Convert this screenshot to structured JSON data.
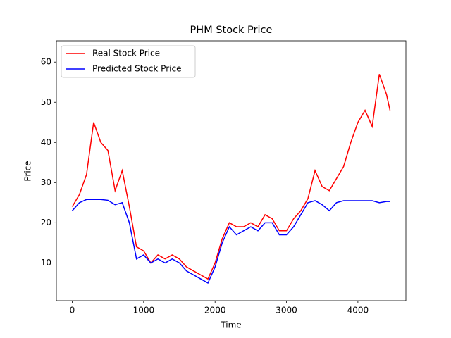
{
  "chart_data": {
    "type": "line",
    "title": "PHM Stock Price",
    "x_label": "Time",
    "y_label": "Price",
    "x": [
      0,
      100,
      200,
      300,
      400,
      500,
      600,
      700,
      800,
      900,
      1000,
      1100,
      1200,
      1300,
      1400,
      1500,
      1600,
      1700,
      1800,
      1900,
      2000,
      2100,
      2200,
      2300,
      2400,
      2500,
      2600,
      2700,
      2800,
      2900,
      3000,
      3100,
      3200,
      3300,
      3400,
      3500,
      3600,
      3700,
      3800,
      3900,
      4000,
      4100,
      4200,
      4300,
      4400,
      4450
    ],
    "series": [
      {
        "name": "Real Stock Price",
        "color": "#ff0000",
        "values": [
          24,
          27,
          32,
          45,
          40,
          38,
          28,
          33,
          24,
          14,
          13,
          10,
          12,
          11,
          12,
          11,
          9,
          8,
          7,
          6,
          10,
          16,
          20,
          19,
          19,
          20,
          19,
          22,
          21,
          18,
          18,
          21,
          23,
          26,
          33,
          29,
          28,
          31,
          34,
          40,
          45,
          48,
          44,
          57,
          52,
          48
        ]
      },
      {
        "name": "Predicted Stock Price",
        "color": "#0000ff",
        "values": [
          23,
          25,
          25.8,
          25.8,
          25.8,
          25.6,
          24.5,
          25,
          20,
          11,
          12,
          10,
          11,
          10,
          11,
          10,
          8,
          7,
          6,
          5,
          9,
          15,
          19,
          17,
          18,
          19,
          18,
          20,
          20,
          17,
          17,
          19,
          22,
          25,
          25.5,
          24.5,
          23,
          25,
          25.5,
          25.5,
          25.5,
          25.5,
          25.5,
          25,
          25.3,
          25.3
        ]
      }
    ],
    "xlim": [
      -222,
      4672
    ],
    "ylim": [
      0.6,
      65.3
    ],
    "xticks": [
      0,
      1000,
      2000,
      3000,
      4000
    ],
    "yticks": [
      10,
      20,
      30,
      40,
      50,
      60
    ],
    "legend": "upper left"
  }
}
